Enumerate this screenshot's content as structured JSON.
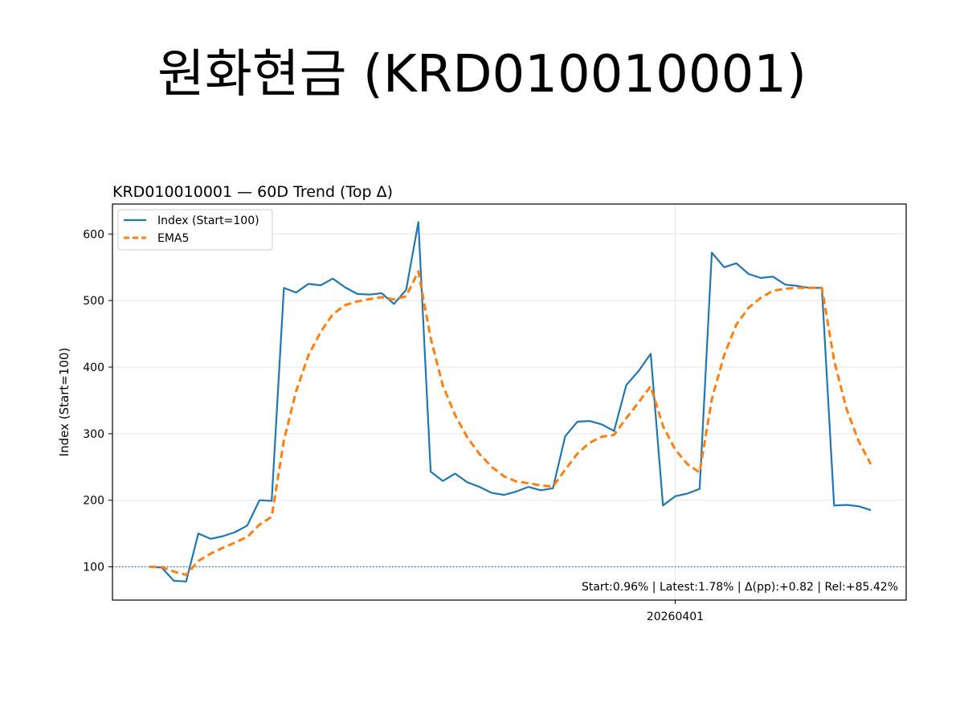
{
  "slide": {
    "title": "원화현금 (KRD010010001)"
  },
  "chart_data": {
    "type": "line",
    "title": "KRD010010001 — 60D Trend (Top Δ)",
    "xlabel": "",
    "ylabel": "Index (Start=100)",
    "ylim": [
      50,
      645
    ],
    "yticks": [
      100,
      200,
      300,
      400,
      500,
      600
    ],
    "xtick": {
      "label": "20260401",
      "index": 43
    },
    "grid": true,
    "legend": "top-left",
    "baseline": 100,
    "series": [
      {
        "name": "Index (Start=100)",
        "color": "#1f77b4",
        "style": "solid",
        "values": [
          100,
          99,
          79,
          78,
          150,
          142,
          146,
          152,
          162,
          200,
          199,
          519,
          512,
          525,
          523,
          533,
          520,
          510,
          509,
          511,
          495,
          516,
          618,
          243,
          229,
          240,
          227,
          220,
          211,
          208,
          213,
          220,
          215,
          218,
          296,
          318,
          319,
          314,
          304,
          373,
          394,
          420,
          192,
          206,
          210,
          217,
          572,
          550,
          556,
          540,
          534,
          536,
          524,
          522,
          519,
          519,
          192,
          193,
          191,
          185
        ]
      },
      {
        "name": "EMA5",
        "color": "#ff7f0e",
        "style": "dashed",
        "values": [
          100,
          99.7,
          92.8,
          87.9,
          108.6,
          119.7,
          128.5,
          136.3,
          144.9,
          163.3,
          175.2,
          289.8,
          363.8,
          417.5,
          452.7,
          479.5,
          493.0,
          498.7,
          502.1,
          505.1,
          501.7,
          506.5,
          543.7,
          443.5,
          372.0,
          328.0,
          294.3,
          269.5,
          250.0,
          236.0,
          228.3,
          225.6,
          222.1,
          220.7,
          245.8,
          269.9,
          286.3,
          295.5,
          298.3,
          323.2,
          346.8,
          371.2,
          311.5,
          276.3,
          254.2,
          241.8,
          351.9,
          417.9,
          463.9,
          489.2,
          504.1,
          514.7,
          517.8,
          519.2,
          519.1,
          519.1,
          410.1,
          337.7,
          288.8,
          254.2
        ]
      }
    ],
    "annotation": "Start:0.96% | Latest:1.78% | Δ(pp):+0.82 | Rel:+85.42%"
  }
}
